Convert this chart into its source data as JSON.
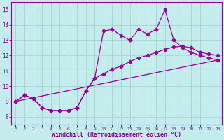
{
  "background_color": "#c5ecec",
  "grid_color": "#aad8d8",
  "line_color": "#990099",
  "xlabel": "Windchill (Refroidissement éolien,°C)",
  "xlabel_fontsize": 6,
  "ylim": [
    7.5,
    15.5
  ],
  "xlim": [
    -0.5,
    23.5
  ],
  "yticks": [
    8,
    9,
    10,
    11,
    12,
    13,
    14,
    15
  ],
  "xticks": [
    0,
    1,
    2,
    3,
    4,
    5,
    6,
    7,
    8,
    9,
    10,
    11,
    12,
    13,
    14,
    15,
    16,
    17,
    18,
    19,
    20,
    21,
    22,
    23
  ],
  "series1_x": [
    0,
    1,
    2,
    3,
    4,
    5,
    6,
    7,
    8,
    9,
    10,
    11,
    12,
    13,
    14,
    15,
    16,
    17,
    18,
    19,
    20,
    21,
    22,
    23
  ],
  "series1_y": [
    9.0,
    9.4,
    9.2,
    8.6,
    8.4,
    8.4,
    8.4,
    8.6,
    9.7,
    10.5,
    13.6,
    13.7,
    13.3,
    13.0,
    13.7,
    13.4,
    13.7,
    15.0,
    13.0,
    12.5,
    12.2,
    12.0,
    11.85,
    11.7
  ],
  "series2_x": [
    0,
    1,
    2,
    3,
    4,
    5,
    6,
    7,
    8,
    9,
    10,
    11,
    12,
    13,
    14,
    15,
    16,
    17,
    18,
    19,
    20,
    21,
    22,
    23
  ],
  "series2_y": [
    9.0,
    9.4,
    9.2,
    8.6,
    8.4,
    8.4,
    8.4,
    8.6,
    9.7,
    10.5,
    10.8,
    11.1,
    11.3,
    11.6,
    11.85,
    12.0,
    12.2,
    12.4,
    12.55,
    12.6,
    12.5,
    12.2,
    12.1,
    12.0
  ],
  "series3_x": [
    0,
    23
  ],
  "series3_y": [
    9.0,
    11.7
  ]
}
